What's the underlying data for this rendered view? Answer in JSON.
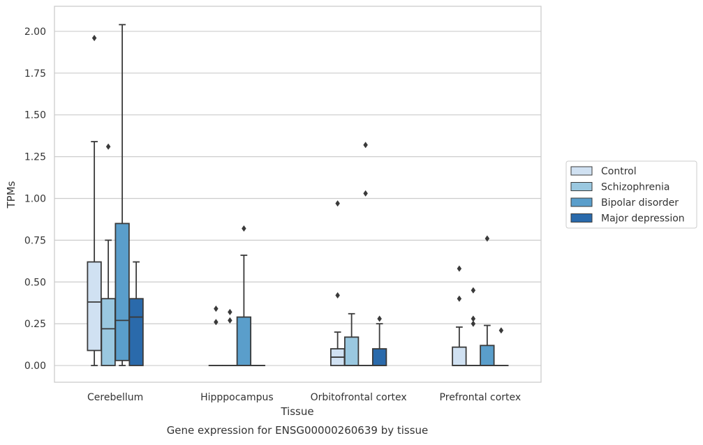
{
  "chart_data": {
    "type": "box",
    "caption": "Gene expression for ENSG00000260639 by tissue",
    "xlabel": "Tissue",
    "ylabel": "TPMs",
    "ylim": [
      -0.1,
      2.15
    ],
    "yticks": [
      "0.00",
      "0.25",
      "0.50",
      "0.75",
      "1.00",
      "1.25",
      "1.50",
      "1.75",
      "2.00"
    ],
    "grid": "horizontal",
    "legend_position": "right",
    "categories": [
      "Cerebellum",
      "Hipppocampus",
      "Orbitofrontal cortex",
      "Prefrontal cortex"
    ],
    "series": [
      {
        "name": "Control",
        "color": "#d0e1f2",
        "boxes": [
          {
            "min": 0.0,
            "q1": 0.09,
            "median": 0.38,
            "q3": 0.62,
            "max": 1.34,
            "outliers": [
              1.96
            ]
          },
          {
            "min": 0.0,
            "q1": 0.0,
            "median": 0.0,
            "q3": 0.0,
            "max": 0.0,
            "outliers": [
              0.26,
              0.34
            ]
          },
          {
            "min": 0.0,
            "q1": 0.0,
            "median": 0.05,
            "q3": 0.1,
            "max": 0.2,
            "outliers": [
              0.42,
              0.97
            ]
          },
          {
            "min": 0.0,
            "q1": 0.0,
            "median": 0.0,
            "q3": 0.11,
            "max": 0.23,
            "outliers": [
              0.4,
              0.58
            ]
          }
        ]
      },
      {
        "name": "Schizophrenia",
        "color": "#9ac8e0",
        "boxes": [
          {
            "min": 0.0,
            "q1": 0.0,
            "median": 0.22,
            "q3": 0.4,
            "max": 0.75,
            "outliers": [
              1.31
            ]
          },
          {
            "min": 0.0,
            "q1": 0.0,
            "median": 0.0,
            "q3": 0.0,
            "max": 0.0,
            "outliers": [
              0.27,
              0.32
            ]
          },
          {
            "min": 0.0,
            "q1": 0.0,
            "median": 0.0,
            "q3": 0.17,
            "max": 0.31,
            "outliers": []
          },
          {
            "min": 0.0,
            "q1": 0.0,
            "median": 0.0,
            "q3": 0.0,
            "max": 0.0,
            "outliers": [
              0.25,
              0.28,
              0.45
            ]
          }
        ]
      },
      {
        "name": "Bipolar disorder",
        "color": "#5a9ecb",
        "boxes": [
          {
            "min": 0.0,
            "q1": 0.03,
            "median": 0.27,
            "q3": 0.85,
            "max": 2.04,
            "outliers": []
          },
          {
            "min": 0.0,
            "q1": 0.0,
            "median": 0.0,
            "q3": 0.29,
            "max": 0.66,
            "outliers": [
              0.82
            ]
          },
          {
            "min": 0.0,
            "q1": 0.0,
            "median": 0.0,
            "q3": 0.0,
            "max": 0.0,
            "outliers": [
              1.03,
              1.32
            ]
          },
          {
            "min": 0.0,
            "q1": 0.0,
            "median": 0.0,
            "q3": 0.12,
            "max": 0.24,
            "outliers": [
              0.76
            ]
          }
        ]
      },
      {
        "name": "Major depression",
        "color": "#2a6aab",
        "boxes": [
          {
            "min": 0.0,
            "q1": 0.0,
            "median": 0.29,
            "q3": 0.4,
            "max": 0.62,
            "outliers": []
          },
          {
            "min": 0.0,
            "q1": 0.0,
            "median": 0.0,
            "q3": 0.0,
            "max": 0.0,
            "outliers": []
          },
          {
            "min": 0.0,
            "q1": 0.0,
            "median": 0.0,
            "q3": 0.1,
            "max": 0.25,
            "outliers": [
              0.28
            ]
          },
          {
            "min": 0.0,
            "q1": 0.0,
            "median": 0.0,
            "q3": 0.0,
            "max": 0.0,
            "outliers": [
              0.21
            ]
          }
        ]
      }
    ]
  }
}
